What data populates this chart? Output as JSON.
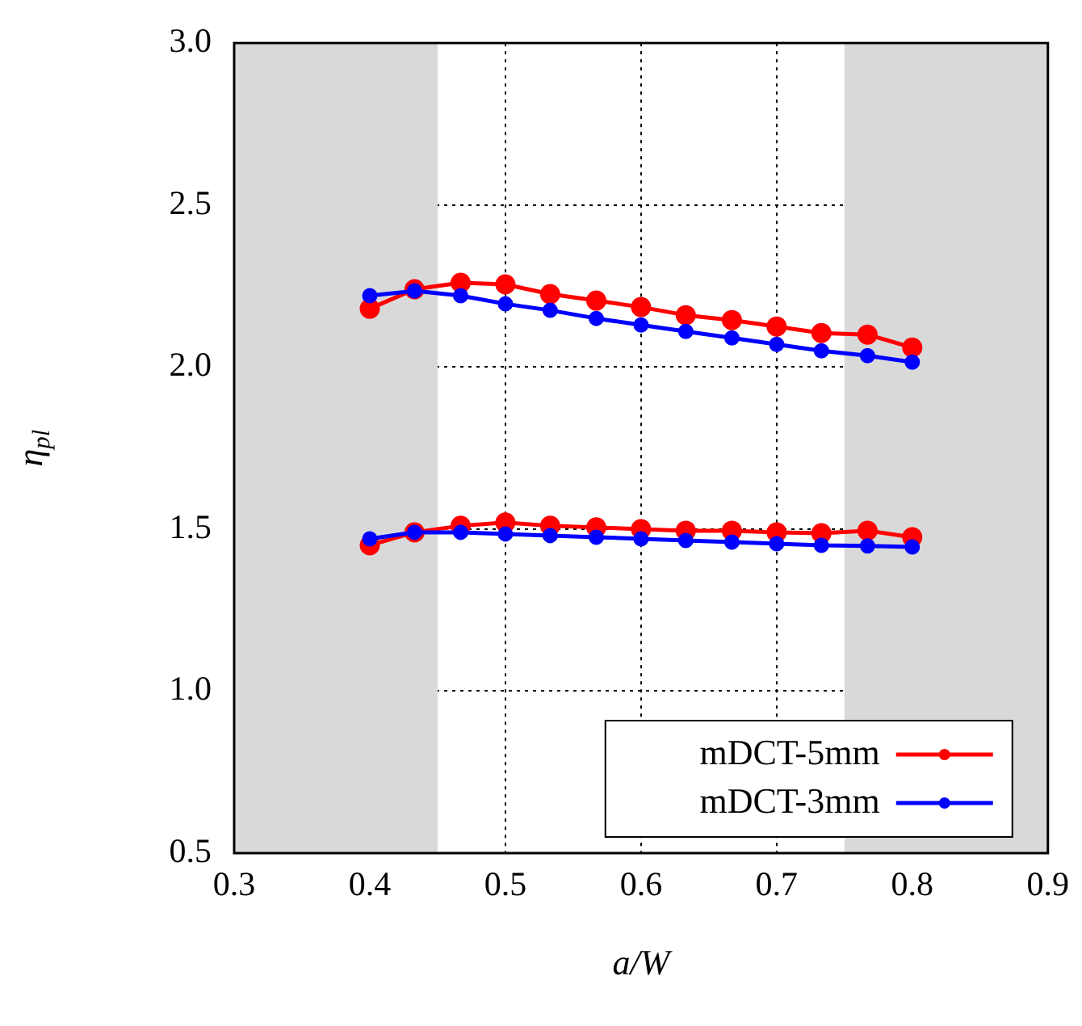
{
  "chart_data": {
    "type": "line",
    "xlabel": "a/W",
    "ylabel": "η$_{pl}$",
    "x": [
      0.4,
      0.433,
      0.467,
      0.5,
      0.533,
      0.567,
      0.6,
      0.633,
      0.667,
      0.7,
      0.733,
      0.767,
      0.8
    ],
    "series": [
      {
        "name": "mDCT-5mm",
        "color": "#ff0000",
        "values": [
          2.18,
          2.24,
          2.26,
          2.255,
          2.225,
          2.205,
          2.185,
          2.16,
          2.145,
          2.125,
          2.105,
          2.1,
          2.06
        ]
      },
      {
        "name": "mDCT-3mm",
        "color": "#0000ff",
        "values": [
          2.22,
          2.235,
          2.22,
          2.195,
          2.175,
          2.15,
          2.13,
          2.11,
          2.09,
          2.07,
          2.05,
          2.035,
          2.015
        ]
      },
      {
        "color": "#ff0000",
        "values": [
          1.45,
          1.49,
          1.51,
          1.52,
          1.51,
          1.505,
          1.5,
          1.495,
          1.495,
          1.49,
          1.487,
          1.495,
          1.475
        ]
      },
      {
        "color": "#0000ff",
        "values": [
          1.47,
          1.49,
          1.49,
          1.485,
          1.48,
          1.475,
          1.47,
          1.465,
          1.46,
          1.455,
          1.45,
          1.448,
          1.445
        ]
      }
    ],
    "xlim": [
      0.3,
      0.9
    ],
    "xticks": [
      0.3,
      0.4,
      0.5,
      0.6,
      0.7,
      0.8,
      0.9
    ],
    "ylim": [
      0.5,
      3.0
    ],
    "yticks": [
      {
        "value": 0.5,
        "label": "0.5"
      },
      {
        "value": 1.0,
        "label": "1.0"
      },
      {
        "value": 1.5,
        "label": "1.5"
      },
      {
        "value": 2.0,
        "label": "2.0"
      },
      {
        "value": 2.5,
        "label": "2.5"
      },
      {
        "value": 3.0,
        "label": "3.0"
      }
    ],
    "bands": [
      {
        "axis": "x",
        "from": 0.3,
        "to": 0.45,
        "color": "#d9d9d9"
      },
      {
        "axis": "x",
        "from": 0.75,
        "to": 0.9,
        "color": "#d9d9d9"
      }
    ],
    "grid": true,
    "legend": "bottom right",
    "marker": "circle",
    "line_style": "solid"
  }
}
